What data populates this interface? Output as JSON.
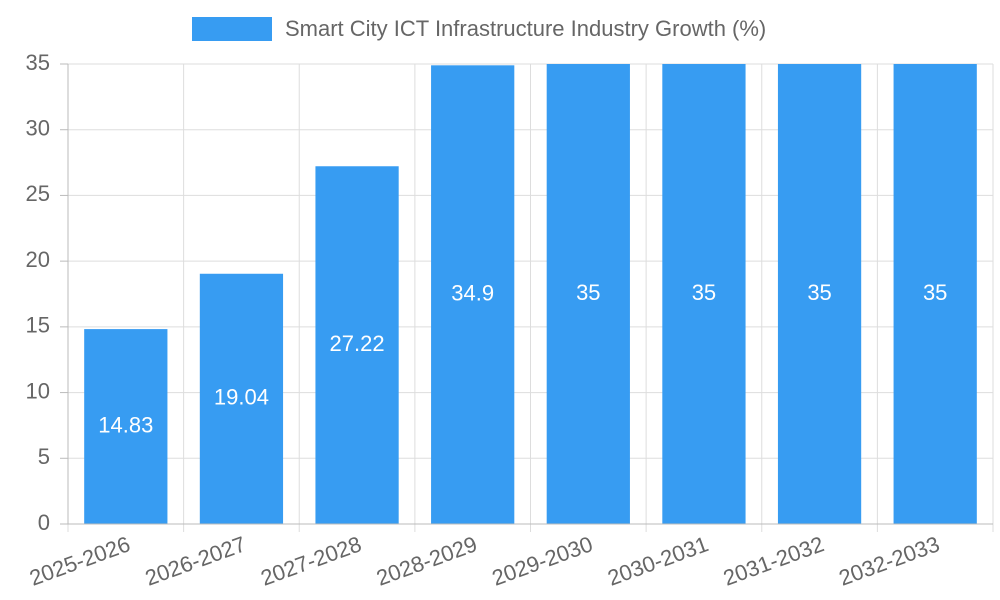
{
  "chart_data": {
    "type": "bar",
    "categories": [
      "2025-2026",
      "2026-2027",
      "2027-2028",
      "2028-2029",
      "2029-2030",
      "2030-2031",
      "2031-2032",
      "2032-2033"
    ],
    "series": [
      {
        "name": "Smart City ICT Infrastructure Industry Growth (%)",
        "values": [
          14.83,
          19.04,
          27.22,
          34.9,
          35,
          35,
          35,
          35
        ],
        "color": "#379cf2"
      }
    ],
    "ylim": [
      0,
      35
    ],
    "yticks": [
      0,
      5,
      10,
      15,
      20,
      25,
      30,
      35
    ],
    "legend": "top-center",
    "grid": true,
    "data_labels": true
  }
}
